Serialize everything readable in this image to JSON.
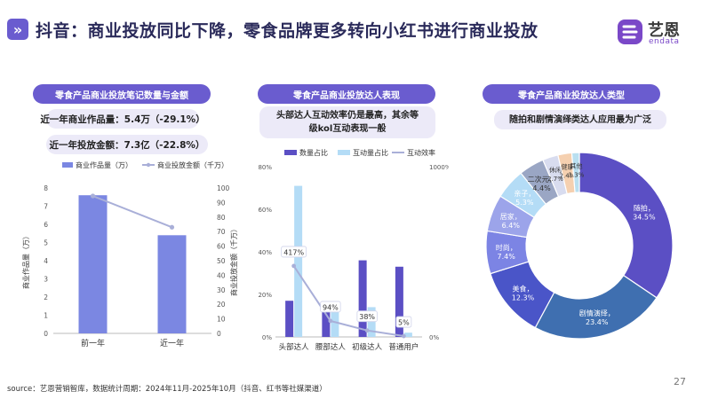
{
  "header": {
    "title": "抖音：商业投放同比下降，零食品牌更多转向小红书进行商业投放",
    "chevron_icon": "»",
    "logo_cn": "艺恩",
    "logo_en": "endata"
  },
  "panel1": {
    "pill": "零食产品商业投放笔记数量与金额",
    "metric1": "近一年商业作品量：5.4万（-29.1%）",
    "metric2": "近一年投放金额：7.3亿（-22.8%）"
  },
  "panel2": {
    "pill": "零食产品商业投放达人表现",
    "note_line1": "头部达人互动效率仍是最高，其余等",
    "note_line2": "级kol互动表现一般"
  },
  "panel3": {
    "pill": "零食产品商业投放达人类型",
    "note": "随拍和剧情演绎类达人应用最为广泛"
  },
  "chart_data": [
    {
      "type": "bar",
      "title": "零食产品商业投放笔记数量与金额",
      "categories": [
        "前一年",
        "近一年"
      ],
      "series": [
        {
          "name": "商业作品量（万）",
          "kind": "bar",
          "axis": "left",
          "values": [
            7.6,
            5.4
          ]
        },
        {
          "name": "商业投放金额（千万）",
          "kind": "line",
          "axis": "right",
          "values": [
            94.5,
            73
          ]
        }
      ],
      "ylabel": "商业作品量（万）",
      "y2label": "商业投放金额（千万）",
      "ylim": [
        0,
        8
      ],
      "yticks": [
        "0",
        "1",
        "2",
        "3",
        "4",
        "5",
        "6",
        "7",
        "8"
      ],
      "y2lim": [
        0,
        100
      ],
      "y2ticks": [
        "0",
        "10",
        "20",
        "30",
        "40",
        "50",
        "60",
        "70",
        "80",
        "90",
        "100"
      ],
      "colors": {
        "bar": "#7b87e2",
        "line": "#a9afd8"
      }
    },
    {
      "type": "bar",
      "title": "零食产品商业投放达人表现",
      "categories": [
        "头部达人",
        "腰部达人",
        "初级达人",
        "普通用户"
      ],
      "series": [
        {
          "name": "数量占比",
          "kind": "bar",
          "axis": "left",
          "values": [
            17,
            13,
            36,
            33
          ]
        },
        {
          "name": "互动量占比",
          "kind": "bar",
          "axis": "left",
          "values": [
            71,
            13,
            14,
            2
          ]
        },
        {
          "name": "互动效率",
          "kind": "line",
          "axis": "right",
          "values": [
            417,
            94,
            38,
            5
          ]
        }
      ],
      "data_labels": [
        "417%",
        "94%",
        "38%",
        "5%"
      ],
      "ylim": [
        0,
        80
      ],
      "yticks": [
        "0%",
        "20%",
        "40%",
        "60%",
        "80%"
      ],
      "y2lim": [
        0,
        1000
      ],
      "y2ticks": [
        "0%",
        "1000%"
      ],
      "colors": {
        "s1": "#5b4fc4",
        "s2": "#b4dcf6",
        "line": "#a9afd8"
      }
    },
    {
      "type": "pie",
      "title": "零食产品商业投放达人类型",
      "labels": [
        "随拍",
        "剧情演绎",
        "美食",
        "时尚",
        "居家",
        "亲子",
        "二次元",
        "休闲",
        "健康",
        "其他"
      ],
      "values": [
        34.5,
        23.4,
        12.3,
        7.4,
        6.4,
        5.3,
        4.4,
        2.7,
        2.4,
        1.3
      ],
      "value_labels": [
        "34.5%",
        "23.4%",
        "12.3%",
        "7.4%",
        "6.4%",
        "5.3%",
        "4.4%",
        "2.7%",
        "2.4%",
        "1.3%"
      ],
      "colors": [
        "#5b4fc4",
        "#3f6fb0",
        "#4a55c8",
        "#7c84e4",
        "#9ca4ea",
        "#b4dcf6",
        "#9aa6c4",
        "#d8dcef",
        "#f5d0b0",
        "#b9dff0"
      ]
    }
  ],
  "footer": {
    "source": "source：艺恩营销智库，数据统计周期：2024年11月-2025年10月（抖音、红书等社媒渠道）",
    "page": "27"
  }
}
